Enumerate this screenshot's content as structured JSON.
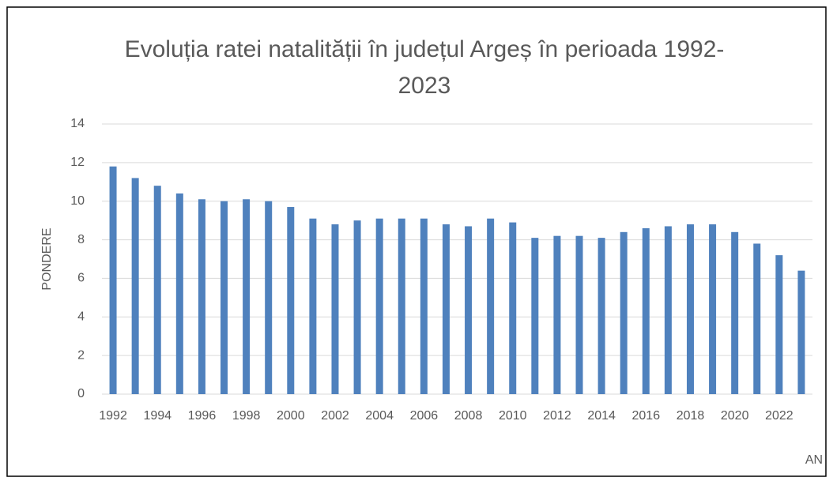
{
  "chart_data": {
    "type": "bar",
    "title": "Evoluția ratei natalității în județul Argeș în perioada 1992-2023",
    "x_label": "AN",
    "y_label": "PONDERE",
    "categories": [
      "1992",
      null,
      "1994",
      null,
      "1996",
      null,
      "1998",
      null,
      "2000",
      null,
      "2002",
      null,
      "2004",
      null,
      "2006",
      null,
      "2008",
      null,
      "2010",
      null,
      "2012",
      null,
      "2014",
      null,
      "2016",
      null,
      "2018",
      null,
      "2020",
      null,
      "2022",
      null
    ],
    "values": [
      11.8,
      11.2,
      10.8,
      10.4,
      10.1,
      10.0,
      10.1,
      10.0,
      9.7,
      9.1,
      8.8,
      9.0,
      9.1,
      9.1,
      9.1,
      8.8,
      8.7,
      9.1,
      8.9,
      8.1,
      8.2,
      8.2,
      8.1,
      8.4,
      8.6,
      8.7,
      8.8,
      8.8,
      8.4,
      7.8,
      7.2,
      6.4
    ],
    "color": "#4f81bd",
    "ylim": [
      0,
      14
    ],
    "yticks": [
      0,
      2,
      4,
      6,
      8,
      10,
      12,
      14
    ],
    "grid": true
  }
}
